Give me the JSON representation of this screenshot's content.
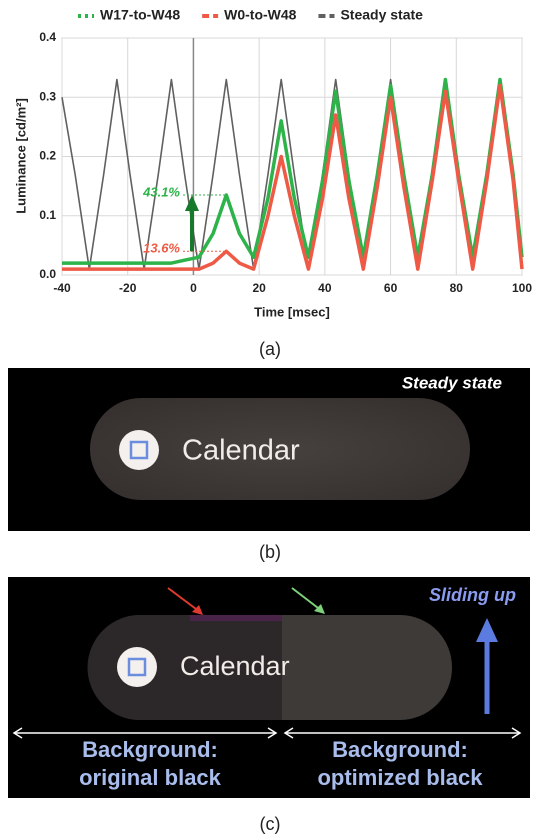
{
  "chart_data": {
    "type": "line",
    "xlabel": "Time [msec]",
    "ylabel": "Luminance [cd/m²]",
    "x": [
      -40,
      -36,
      -31.7,
      -27.3,
      -23.3,
      -19.3,
      -15,
      -10.7,
      -6.7,
      -2.7,
      1.7,
      6,
      10,
      14,
      18.3,
      22.7,
      26.7,
      30.7,
      35,
      39.3,
      43.3,
      47.3,
      51.7,
      56,
      60,
      64,
      68.3,
      72.7,
      76.7,
      80.7,
      85,
      89.3,
      93.3,
      97.3,
      100
    ],
    "series": [
      {
        "name": "Steady state",
        "color": "#606060",
        "dash": "dash",
        "values": [
          0.3,
          0.17,
          0.01,
          0.17,
          0.33,
          0.17,
          0.01,
          0.17,
          0.33,
          0.17,
          0.01,
          0.17,
          0.33,
          0.17,
          0.01,
          0.17,
          0.33,
          0.17,
          0.01,
          0.17,
          0.33,
          0.17,
          0.01,
          0.17,
          0.33,
          0.17,
          0.01,
          0.17,
          0.32,
          0.17,
          0.01,
          0.17,
          0.32,
          0.17,
          0.03
        ]
      },
      {
        "name": "W17-to-W48",
        "color": "#2db34a",
        "dash": "dot",
        "values": [
          0.02,
          0.02,
          0.02,
          0.02,
          0.02,
          0.02,
          0.02,
          0.02,
          0.02,
          0.025,
          0.03,
          0.07,
          0.135,
          0.07,
          0.03,
          0.13,
          0.26,
          0.13,
          0.03,
          0.16,
          0.31,
          0.16,
          0.03,
          0.17,
          0.32,
          0.17,
          0.03,
          0.17,
          0.33,
          0.17,
          0.03,
          0.17,
          0.33,
          0.17,
          0.03
        ]
      },
      {
        "name": "W0-to-W48",
        "color": "#ee5a45",
        "dash": "dash",
        "values": [
          0.01,
          0.01,
          0.01,
          0.01,
          0.01,
          0.01,
          0.01,
          0.01,
          0.01,
          0.01,
          0.01,
          0.02,
          0.04,
          0.02,
          0.01,
          0.1,
          0.2,
          0.1,
          0.01,
          0.13,
          0.27,
          0.13,
          0.01,
          0.15,
          0.3,
          0.15,
          0.01,
          0.16,
          0.31,
          0.16,
          0.01,
          0.16,
          0.32,
          0.16,
          0.01
        ]
      }
    ],
    "xlim": [
      -40,
      100
    ],
    "xticks": [
      -40,
      -20,
      0,
      20,
      40,
      60,
      80,
      100
    ],
    "ylim": [
      0,
      0.4
    ],
    "yticks": [
      {
        "value": 0,
        "label": "0.0"
      },
      0.1,
      0.2,
      0.3,
      0.4
    ],
    "grid": true,
    "legend": "top",
    "annotations": [
      {
        "text": "43.1%",
        "x": 10,
        "y": 0.135,
        "color": "#2db34a"
      },
      {
        "text": "13.6%",
        "x": 10,
        "y": 0.04,
        "color": "#ee5a45"
      }
    ]
  },
  "captions": [
    "(a)",
    "(b)",
    "(c)"
  ],
  "panel_b": {
    "label": "Steady state",
    "app": "Calendar"
  },
  "panel_c": {
    "label": "Sliding up",
    "app": "Calendar",
    "left": [
      "Background:",
      "original black"
    ],
    "right": [
      "Background:",
      "optimized black"
    ]
  }
}
